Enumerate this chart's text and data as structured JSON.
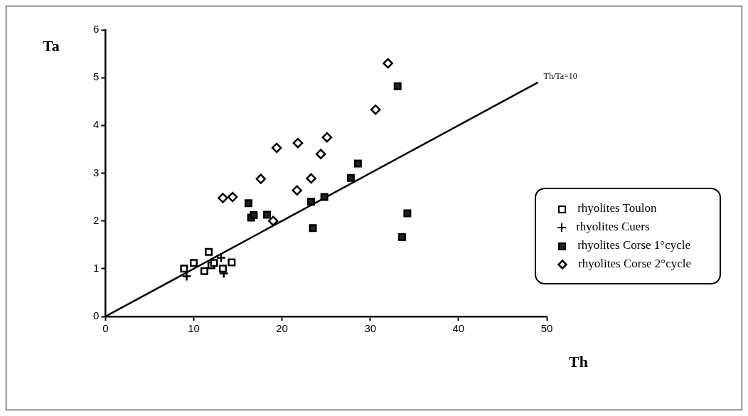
{
  "chart_data": {
    "type": "scatter",
    "xlabel": "Th",
    "ylabel": "Ta",
    "xlim": [
      0,
      50
    ],
    "ylim": [
      0,
      6
    ],
    "xticks": [
      0,
      10,
      20,
      30,
      40,
      50
    ],
    "yticks": [
      0,
      1,
      2,
      3,
      4,
      5,
      6
    ],
    "grid": false,
    "legend": "bottom right",
    "series": [
      {
        "name": "rhyolites Toulon",
        "color": "#ffffff",
        "marker": "square",
        "x": [
          8.9,
          10.0,
          11.2,
          11.7,
          12.0,
          12.3,
          13.3,
          14.3
        ],
        "values": [
          1.0,
          1.12,
          0.95,
          1.35,
          1.07,
          1.12,
          1.0,
          1.13
        ]
      },
      {
        "name": "rhyolites Cuers",
        "color": "#000000",
        "marker": "cross",
        "x": [
          9.2,
          13.4,
          13.1
        ],
        "values": [
          0.84,
          0.9,
          1.23
        ]
      },
      {
        "name": "rhyolites Corse 1°cycle",
        "color": "#222222",
        "marker": "square",
        "x": [
          16.2,
          16.5,
          16.8,
          18.3,
          23.3,
          23.5,
          24.8,
          27.8,
          28.6,
          33.1,
          33.6,
          34.2
        ],
        "values": [
          2.37,
          2.07,
          2.12,
          2.13,
          2.4,
          1.85,
          2.5,
          2.9,
          3.2,
          4.82,
          1.66,
          2.16
        ]
      },
      {
        "name": "rhyolites Corse 2°cycle",
        "color": "#ffffff",
        "marker": "diamond",
        "x": [
          13.3,
          14.4,
          17.6,
          19.0,
          19.4,
          21.7,
          21.8,
          23.3,
          24.4,
          25.1,
          30.6,
          32.0
        ],
        "values": [
          2.48,
          2.5,
          2.88,
          2.0,
          3.53,
          2.64,
          3.63,
          2.89,
          3.4,
          3.75,
          4.33,
          5.3
        ]
      },
      {
        "type": "line",
        "color": "#000000",
        "marker": "none",
        "x": [
          0,
          49
        ],
        "values": [
          0,
          4.9
        ]
      }
    ],
    "annotations": [
      {
        "text": "Th/Ta=10",
        "x": 49,
        "y": 4.9
      }
    ]
  }
}
